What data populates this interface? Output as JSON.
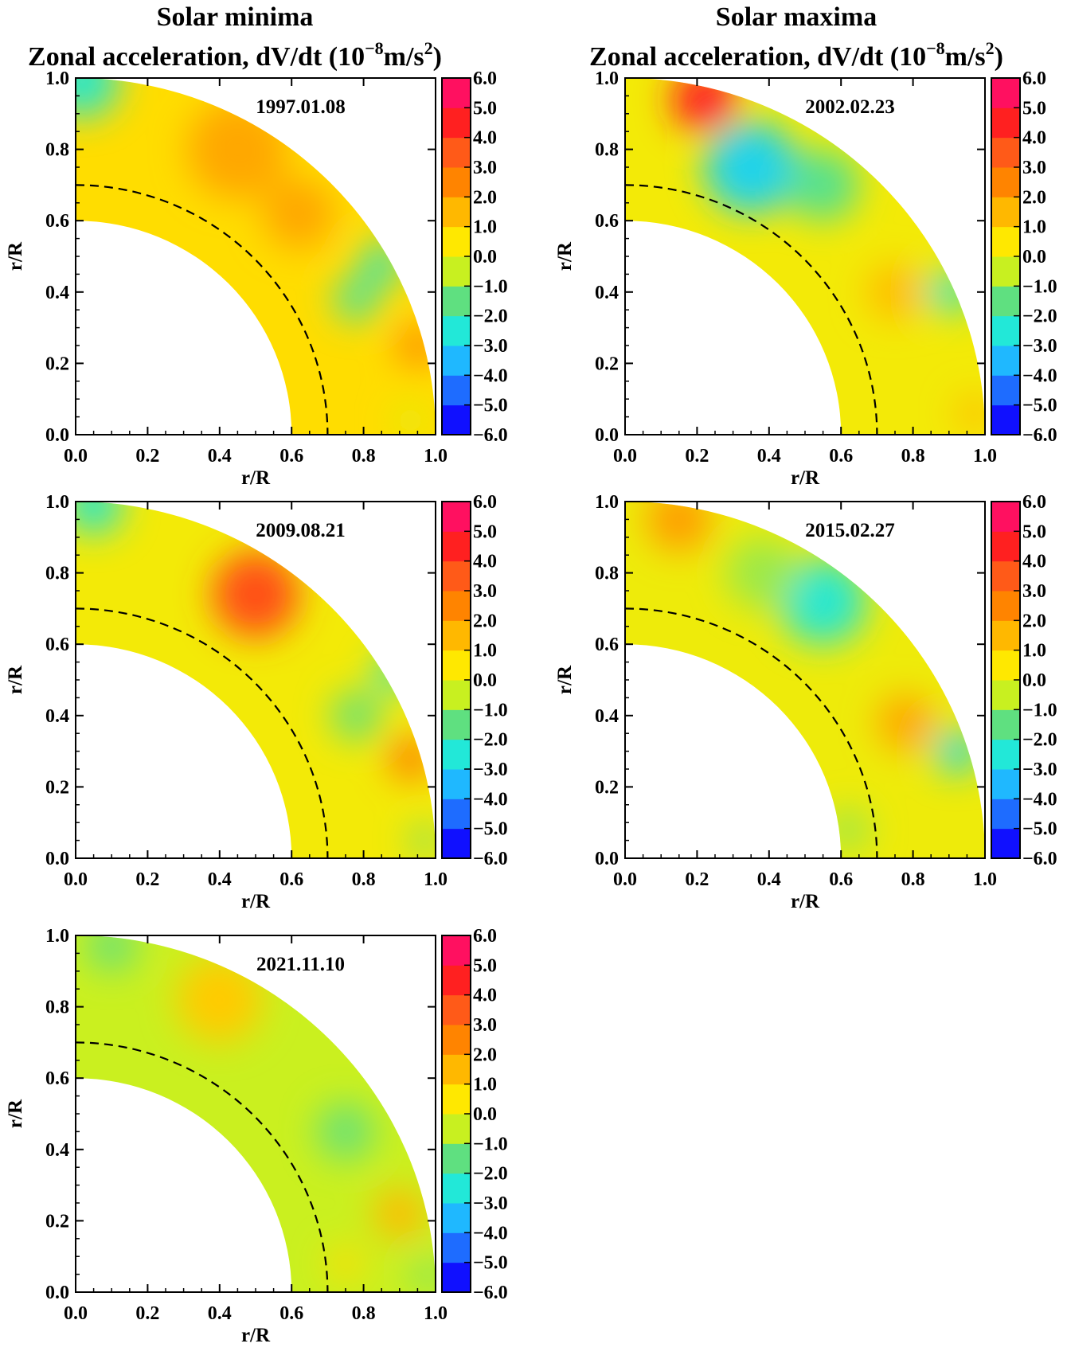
{
  "column_titles": {
    "left": [
      "Solar minima",
      "Zonal acceleration, dV/dt (10",
      "−8",
      "m/s",
      "2",
      ")"
    ],
    "right": [
      "Solar maxima",
      "Zonal acceleration, dV/dt (10",
      "−8",
      "m/s",
      "2",
      ")"
    ]
  },
  "colors": {
    "scale": [
      "#1010ff",
      "#1e6cff",
      "#1fb8ff",
      "#22e8d8",
      "#5fe080",
      "#c8f020",
      "#ffe800",
      "#ffb800",
      "#ff8400",
      "#ff5a18",
      "#ff2020",
      "#ff1060"
    ],
    "dashed_line": "#000000"
  },
  "chart_data": [
    {
      "type": "heatmap",
      "date": "1997.01.08",
      "xlabel": "r/R",
      "ylabel": "r/R",
      "xlim": [
        0.0,
        1.0
      ],
      "ylim": [
        0.0,
        1.0
      ],
      "x_ticks": [
        "0.0",
        "0.2",
        "0.4",
        "0.6",
        "0.8",
        "1.0"
      ],
      "y_ticks": [
        "0.0",
        "0.2",
        "0.4",
        "0.6",
        "0.8",
        "1.0"
      ],
      "domain": {
        "r_inner": 0.6,
        "r_outer": 1.0,
        "dashed_r": 0.7
      },
      "colorbar": {
        "range": [
          -6.0,
          6.0
        ],
        "ticks": [
          "6.0",
          "5.0",
          "4.0",
          "3.0",
          "2.0",
          "1.0",
          "0.0",
          "−1.0",
          "−2.0",
          "−3.0",
          "−4.0",
          "−5.0",
          "−6.0"
        ]
      },
      "background": 0.8,
      "features": [
        {
          "x": 0.02,
          "y": 0.99,
          "value": -2.5,
          "size": 0.1
        },
        {
          "x": 0.45,
          "y": 0.8,
          "value": 2.0,
          "size": 0.14
        },
        {
          "x": 0.62,
          "y": 0.62,
          "value": 2.0,
          "size": 0.1
        },
        {
          "x": 0.78,
          "y": 0.38,
          "value": -2.0,
          "size": 0.06
        },
        {
          "x": 0.85,
          "y": 0.48,
          "value": -2.2,
          "size": 0.06
        },
        {
          "x": 0.95,
          "y": 0.25,
          "value": 2.5,
          "size": 0.06
        },
        {
          "x": 0.93,
          "y": 0.04,
          "value": 0.0,
          "size": 0.05
        }
      ]
    },
    {
      "type": "heatmap",
      "date": "2002.02.23",
      "xlabel": "r/R",
      "ylabel": "r/R",
      "xlim": [
        0.0,
        1.0
      ],
      "ylim": [
        0.0,
        1.0
      ],
      "x_ticks": [
        "0.0",
        "0.2",
        "0.4",
        "0.6",
        "0.8",
        "1.0"
      ],
      "y_ticks": [
        "0.0",
        "0.2",
        "0.4",
        "0.6",
        "0.8",
        "1.0"
      ],
      "domain": {
        "r_inner": 0.6,
        "r_outer": 1.0,
        "dashed_r": 0.7
      },
      "colorbar": {
        "range": [
          -6.0,
          6.0
        ],
        "ticks": [
          "6.0",
          "5.0",
          "4.0",
          "3.0",
          "2.0",
          "1.0",
          "0.0",
          "−1.0",
          "−2.0",
          "−3.0",
          "−4.0",
          "−5.0",
          "−6.0"
        ]
      },
      "background": 0.3,
      "features": [
        {
          "x": 0.22,
          "y": 0.94,
          "value": 5.0,
          "size": 0.09
        },
        {
          "x": 0.35,
          "y": 0.75,
          "value": -3.2,
          "size": 0.13
        },
        {
          "x": 0.55,
          "y": 0.7,
          "value": -1.8,
          "size": 0.1
        },
        {
          "x": 0.75,
          "y": 0.4,
          "value": 1.5,
          "size": 0.08
        },
        {
          "x": 0.9,
          "y": 0.4,
          "value": -2.5,
          "size": 0.06
        },
        {
          "x": 0.97,
          "y": 0.06,
          "value": 1.5,
          "size": 0.05
        }
      ]
    },
    {
      "type": "heatmap",
      "date": "2009.08.21",
      "xlabel": "r/R",
      "ylabel": "r/R",
      "xlim": [
        0.0,
        1.0
      ],
      "ylim": [
        0.0,
        1.0
      ],
      "x_ticks": [
        "0.0",
        "0.2",
        "0.4",
        "0.6",
        "0.8",
        "1.0"
      ],
      "y_ticks": [
        "0.0",
        "0.2",
        "0.4",
        "0.6",
        "0.8",
        "1.0"
      ],
      "domain": {
        "r_inner": 0.6,
        "r_outer": 1.0,
        "dashed_r": 0.7
      },
      "colorbar": {
        "range": [
          -6.0,
          6.0
        ],
        "ticks": [
          "6.0",
          "5.0",
          "4.0",
          "3.0",
          "2.0",
          "1.0",
          "0.0",
          "−1.0",
          "−2.0",
          "−3.0",
          "−4.0",
          "−5.0",
          "−6.0"
        ]
      },
      "background": 0.3,
      "features": [
        {
          "x": 0.05,
          "y": 0.99,
          "value": -2.5,
          "size": 0.08
        },
        {
          "x": 0.5,
          "y": 0.74,
          "value": 4.0,
          "size": 0.12
        },
        {
          "x": 0.78,
          "y": 0.4,
          "value": -1.5,
          "size": 0.07
        },
        {
          "x": 0.88,
          "y": 0.52,
          "value": -2.5,
          "size": 0.05
        },
        {
          "x": 0.93,
          "y": 0.28,
          "value": 3.0,
          "size": 0.06
        },
        {
          "x": 0.97,
          "y": 0.05,
          "value": -1.5,
          "size": 0.04
        }
      ]
    },
    {
      "type": "heatmap",
      "date": "2015.02.27",
      "xlabel": "r/R",
      "ylabel": "r/R",
      "xlim": [
        0.0,
        1.0
      ],
      "ylim": [
        0.0,
        1.0
      ],
      "x_ticks": [
        "0.0",
        "0.2",
        "0.4",
        "0.6",
        "0.8",
        "1.0"
      ],
      "y_ticks": [
        "0.0",
        "0.2",
        "0.4",
        "0.6",
        "0.8",
        "1.0"
      ],
      "domain": {
        "r_inner": 0.6,
        "r_outer": 1.0,
        "dashed_r": 0.7
      },
      "colorbar": {
        "range": [
          -6.0,
          6.0
        ],
        "ticks": [
          "6.0",
          "5.0",
          "4.0",
          "3.0",
          "2.0",
          "1.0",
          "0.0",
          "−1.0",
          "−2.0",
          "−3.0",
          "−4.0",
          "−5.0",
          "−6.0"
        ]
      },
      "background": 0.2,
      "features": [
        {
          "x": 0.15,
          "y": 0.95,
          "value": 2.2,
          "size": 0.09
        },
        {
          "x": 0.55,
          "y": 0.72,
          "value": -2.6,
          "size": 0.12
        },
        {
          "x": 0.38,
          "y": 0.8,
          "value": -1.0,
          "size": 0.1
        },
        {
          "x": 0.78,
          "y": 0.38,
          "value": 2.0,
          "size": 0.08
        },
        {
          "x": 0.92,
          "y": 0.3,
          "value": -3.0,
          "size": 0.06
        },
        {
          "x": 0.62,
          "y": 0.08,
          "value": -1.0,
          "size": 0.06
        }
      ]
    },
    {
      "type": "heatmap",
      "date": "2021.11.10",
      "xlabel": "r/R",
      "ylabel": "r/R",
      "xlim": [
        0.0,
        1.0
      ],
      "ylim": [
        0.0,
        1.0
      ],
      "x_ticks": [
        "0.0",
        "0.2",
        "0.4",
        "0.6",
        "0.8",
        "1.0"
      ],
      "y_ticks": [
        "0.0",
        "0.2",
        "0.4",
        "0.6",
        "0.8",
        "1.0"
      ],
      "domain": {
        "r_inner": 0.6,
        "r_outer": 1.0,
        "dashed_r": 0.7
      },
      "colorbar": {
        "range": [
          -6.0,
          6.0
        ],
        "ticks": [
          "6.0",
          "5.0",
          "4.0",
          "3.0",
          "2.0",
          "1.0",
          "0.0",
          "−1.0",
          "−2.0",
          "−3.0",
          "−4.0",
          "−5.0",
          "−6.0"
        ]
      },
      "background": -0.5,
      "features": [
        {
          "x": 0.1,
          "y": 0.97,
          "value": -1.5,
          "size": 0.07
        },
        {
          "x": 0.4,
          "y": 0.82,
          "value": 1.2,
          "size": 0.12
        },
        {
          "x": 0.75,
          "y": 0.45,
          "value": -1.5,
          "size": 0.08
        },
        {
          "x": 0.9,
          "y": 0.22,
          "value": 1.6,
          "size": 0.07
        },
        {
          "x": 0.75,
          "y": 0.08,
          "value": 0.8,
          "size": 0.05
        },
        {
          "x": 0.98,
          "y": 0.05,
          "value": -1.5,
          "size": 0.04
        }
      ]
    }
  ]
}
